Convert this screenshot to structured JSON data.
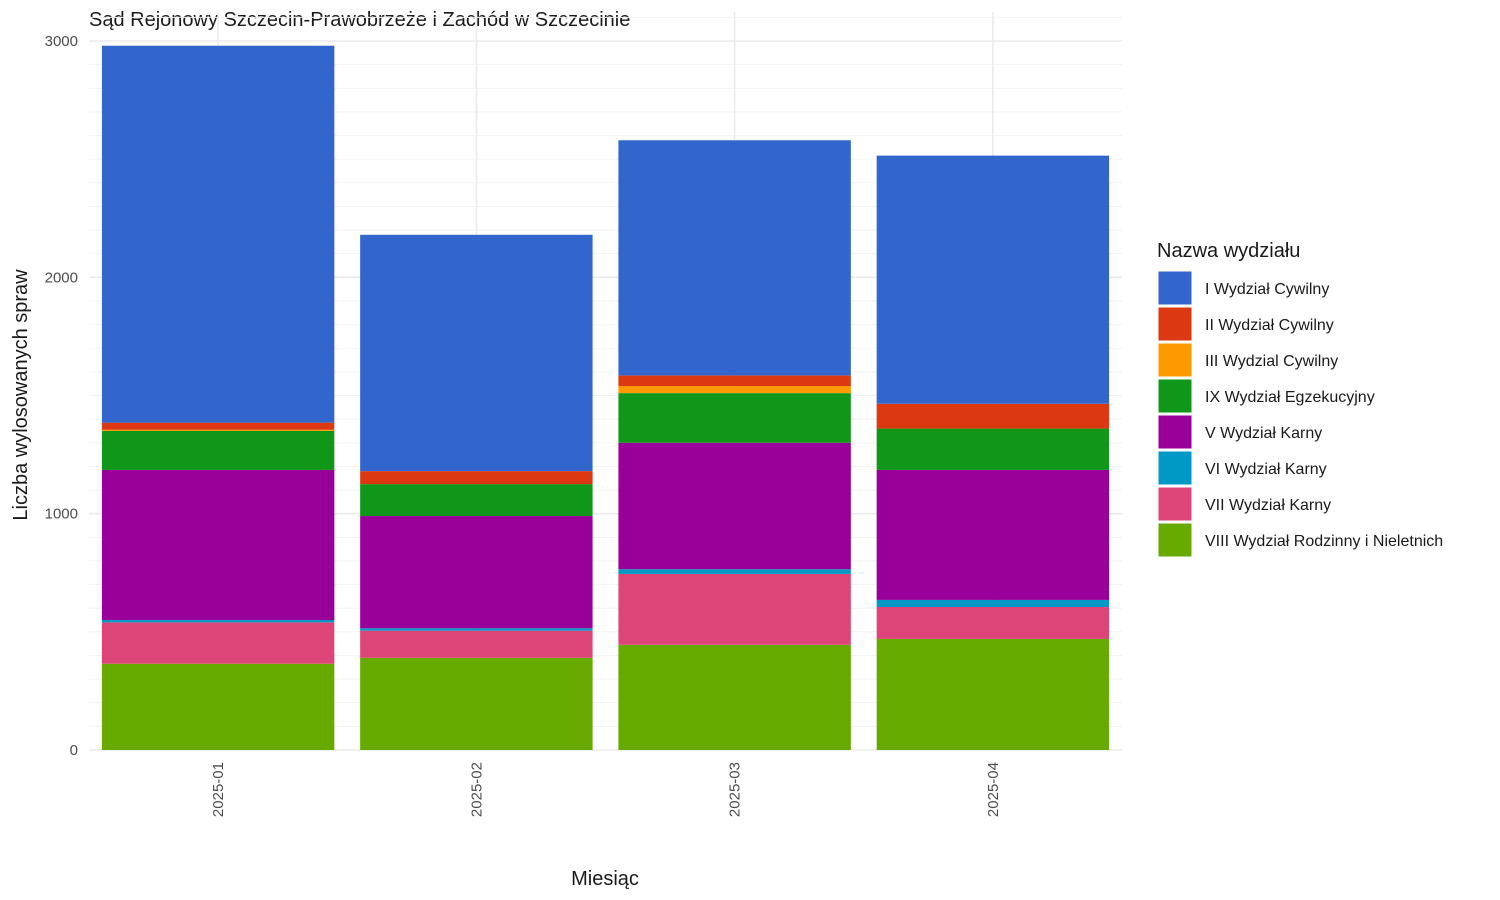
{
  "chart_data": {
    "type": "bar",
    "stacked": true,
    "title": "Sąd Rejonowy Szczecin-Prawobrzeże i Zachód w Szczecinie",
    "xlabel": "Miesiąc",
    "ylabel": "Liczba wylosowanych spraw",
    "ylim": [
      0,
      3000
    ],
    "y_ticks": [
      "0",
      "1000",
      "2000",
      "3000"
    ],
    "grid": true,
    "legend_title": "Nazwa wydziału",
    "legend_position": "right",
    "categories": [
      "2025-01",
      "2025-02",
      "2025-03",
      "2025-04"
    ],
    "series": [
      {
        "name": "I Wydział Cywilny",
        "color": "#3366cc",
        "values": [
          1595,
          1000,
          995,
          1050
        ]
      },
      {
        "name": "II Wydział Cywilny",
        "color": "#dc3912",
        "values": [
          30,
          55,
          45,
          105
        ]
      },
      {
        "name": "III Wydzial Cywilny",
        "color": "#ff9900",
        "values": [
          5,
          0,
          30,
          0
        ]
      },
      {
        "name": "IX Wydział Egzekucyjny",
        "color": "#109618",
        "values": [
          165,
          135,
          210,
          175
        ]
      },
      {
        "name": "V Wydział Karny",
        "color": "#990099",
        "values": [
          635,
          475,
          535,
          550
        ]
      },
      {
        "name": "VI Wydział Karny",
        "color": "#0099c6",
        "values": [
          10,
          10,
          20,
          30
        ]
      },
      {
        "name": "VII Wydział Karny",
        "color": "#dd4477",
        "values": [
          175,
          115,
          300,
          135
        ]
      },
      {
        "name": "VIII Wydział Rodzinny i Nieletnich",
        "color": "#66aa00",
        "values": [
          365,
          390,
          445,
          470
        ]
      }
    ]
  }
}
